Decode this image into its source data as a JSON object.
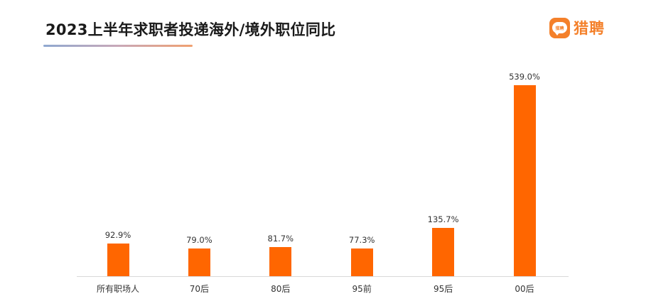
{
  "header": {
    "title": "2023上半年求职者投递海外/境外职位同比",
    "logo_text": "猎聘",
    "logo_icon_text": "猎聘",
    "brand_color": "#f4802a"
  },
  "chart_data": {
    "type": "bar",
    "title": "2023上半年求职者投递海外/境外职位同比",
    "categories": [
      "所有职场人",
      "70后",
      "80后",
      "95前",
      "95后",
      "00后"
    ],
    "values": [
      92.9,
      79.0,
      81.7,
      77.3,
      135.7,
      539.0
    ],
    "value_labels": [
      "92.9%",
      "79.0%",
      "81.7%",
      "77.3%",
      "135.7%",
      "539.0%"
    ],
    "unit": "%",
    "xlabel": "",
    "ylabel": "",
    "ylim": [
      0,
      600
    ],
    "grid": false,
    "legend": null,
    "bar_color": "#ff6600"
  }
}
